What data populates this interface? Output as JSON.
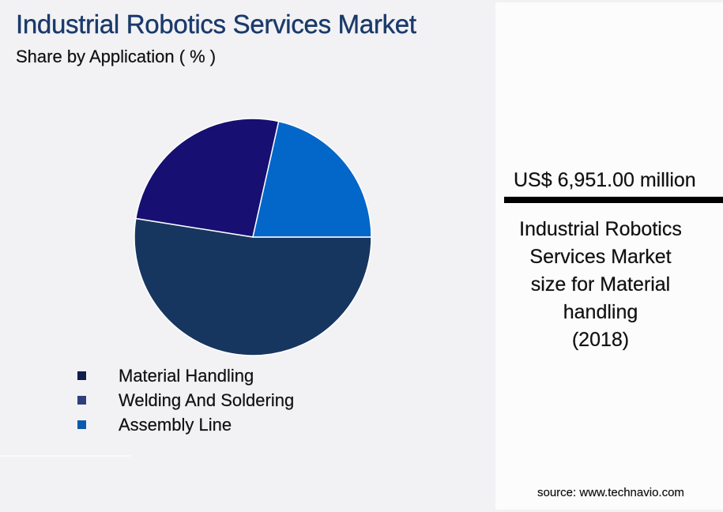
{
  "header": {
    "title": "Industrial Robotics Services Market",
    "subtitle": "Share by Application ( % )"
  },
  "legend": [
    {
      "label": "Material Handling",
      "color": "#0f1f4b"
    },
    {
      "label": "Welding And Soldering",
      "color": "#2e3f7b"
    },
    {
      "label": "Assembly Line",
      "color": "#0b59ad"
    }
  ],
  "side_panel": {
    "value": "US$ 6,951.00 million",
    "description_lines": [
      "Industrial Robotics",
      "Services Market",
      "size for Material",
      "handling",
      "(2018)"
    ],
    "source": "source: www.technavio.com"
  },
  "colors": {
    "material_handling_slice": "#17365f",
    "welding_slice": "#170f72",
    "assembly_slice": "#0366c9",
    "title": "#1b3a6b"
  },
  "chart_data": {
    "type": "pie",
    "title": "Industrial Robotics Services Market",
    "subtitle": "Share by Application ( % )",
    "categories": [
      "Material Handling",
      "Welding And Soldering",
      "Assembly Line"
    ],
    "values": [
      52.5,
      26.0,
      21.5
    ],
    "slice_colors": [
      "#17365f",
      "#170f72",
      "#0366c9"
    ],
    "start_angle_deg_clockwise_from_top": 90,
    "legend_position": "bottom-left",
    "annotation": "US$ 6,951.00 million — Industrial Robotics Services Market size for Material handling (2018)",
    "source": "source: www.technavio.com"
  }
}
